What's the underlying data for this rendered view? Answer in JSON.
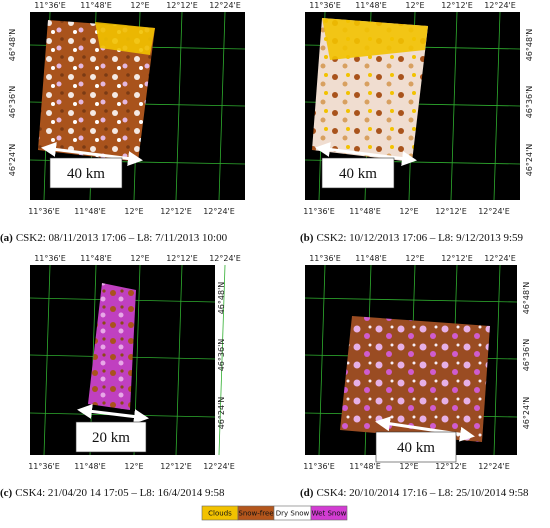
{
  "lon_labels": [
    "11°36'E",
    "11°48'E",
    "12°E",
    "12°12'E",
    "12°24'E"
  ],
  "lat_labels": [
    "46°48'N",
    "46°36'N",
    "46°24'N"
  ],
  "panels": [
    {
      "label": "(a)",
      "caption": "CSK2: 08/11/2013 17:06 – L8: 7/11/2013 10:00",
      "scale": "40 km"
    },
    {
      "label": "(b)",
      "caption": "CSK2: 10/12/2013 17:06 – L8: 9/12/2013 9:59",
      "scale": "40 km"
    },
    {
      "label": "(c)",
      "caption": "CSK4: 21/04/20 14 17:05 – L8: 16/4/2014 9:58",
      "scale": "20 km"
    },
    {
      "label": "(d)",
      "caption": "CSK4: 20/10/2014 17:16 – L8: 25/10/2014 9:58",
      "scale": "40 km"
    }
  ],
  "legend": [
    {
      "label": "Clouds",
      "color": "#f2c200"
    },
    {
      "label": "Snow-free",
      "color": "#b4561c"
    },
    {
      "label": "Dry Snow",
      "color": "#ffffff"
    },
    {
      "label": "Wet Snow",
      "color": "#d23cd2"
    }
  ]
}
